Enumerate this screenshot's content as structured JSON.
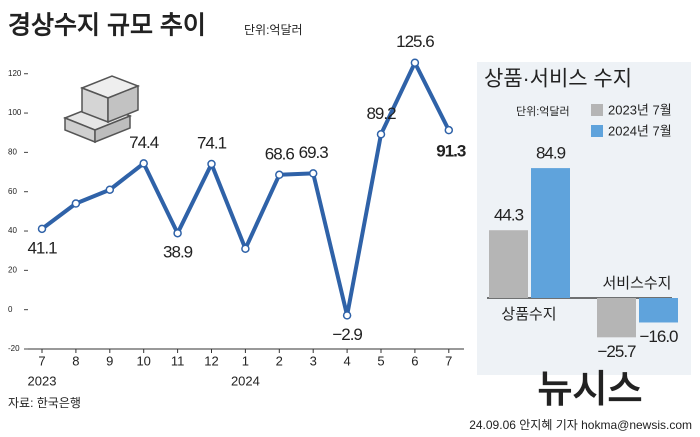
{
  "title": "경상수지 규모 추이",
  "unit": "단위:억달러",
  "source": "자료: 한국은행",
  "credit": "24.09.06 안지혜 기자 hokma@newsis.com",
  "watermark": "뉴시스",
  "chart_data": [
    {
      "type": "line",
      "categories": [
        "7",
        "8",
        "9",
        "10",
        "11",
        "12",
        "1",
        "2",
        "3",
        "4",
        "5",
        "6",
        "7"
      ],
      "year_labels": [
        "2023",
        null,
        null,
        null,
        null,
        null,
        "2024",
        null,
        null,
        null,
        null,
        null,
        null
      ],
      "values": [
        41.1,
        54,
        61,
        74.4,
        38.9,
        74.1,
        31,
        68.6,
        69.3,
        -2.9,
        89.2,
        125.6,
        91.3
      ],
      "value_labels": [
        "41.1",
        null,
        null,
        "74.4",
        "38.9",
        "74.1",
        null,
        "68.6",
        "69.3",
        "−2.9",
        "89.2",
        "125.6",
        "91.3"
      ],
      "color": "#2f62a8",
      "highlight_color": "#3a8fd0",
      "ylim": [
        -20,
        128
      ],
      "yticks": [
        -20,
        0,
        20,
        40,
        60,
        80,
        100,
        120
      ]
    },
    {
      "type": "bar",
      "title": "상품·서비스 수지",
      "unit": "단위:억달러",
      "categories": [
        "상품수지",
        "서비스수지"
      ],
      "series": [
        {
          "name": "2023년 7월",
          "color": "#b5b5b5",
          "values": [
            44.3,
            -25.7
          ],
          "value_labels": [
            "44.3",
            "−25.7"
          ]
        },
        {
          "name": "2024년 7월",
          "color": "#5fa3dc",
          "values": [
            84.9,
            -16.0
          ],
          "value_labels": [
            "84.9",
            "−16.0"
          ]
        }
      ]
    }
  ]
}
